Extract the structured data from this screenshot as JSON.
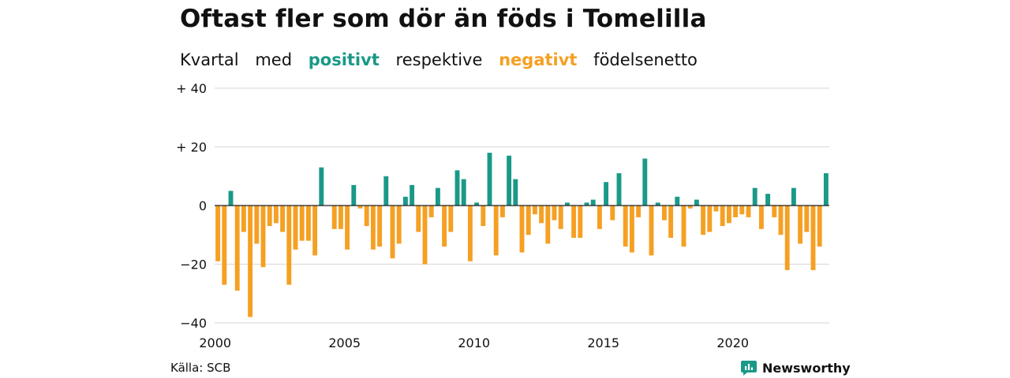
{
  "title": "Oftast fler som dör än föds i Tomelilla",
  "subtitle": {
    "w1": "Kvartal",
    "w2": "med",
    "positive_word": "positivt",
    "w3": "respektive",
    "negative_word": "negativt",
    "w4": "födelsenetto"
  },
  "colors": {
    "positive": "#1a9988",
    "negative": "#f5a023",
    "grid": "#dddddd",
    "text": "#111111"
  },
  "source": "Källa: SCB",
  "brand": {
    "name": "Newsworthy",
    "icon": "chart-bubble-icon"
  },
  "chart_data": {
    "type": "bar",
    "x_start_year": 2000,
    "x_start_quarter": 1,
    "values": [
      -19,
      -27,
      5,
      -29,
      -9,
      -38,
      -13,
      -21,
      -7,
      -6,
      -9,
      -27,
      -15,
      -12,
      -12,
      -17,
      13,
      0,
      -8,
      -8,
      -15,
      7,
      -1,
      -7,
      -15,
      -14,
      10,
      -18,
      -13,
      3,
      7,
      -9,
      -20,
      -4,
      6,
      -14,
      -9,
      12,
      9,
      -19,
      1,
      -7,
      18,
      -17,
      -4,
      17,
      9,
      -16,
      -10,
      -3,
      -6,
      -13,
      -5,
      -8,
      1,
      -11,
      -11,
      1,
      2,
      -8,
      8,
      -5,
      11,
      -14,
      -16,
      -4,
      16,
      -17,
      1,
      -5,
      -11,
      3,
      -14,
      -1,
      2,
      -10,
      -9,
      -2,
      -7,
      -6,
      -4,
      -3,
      -4,
      6,
      -8,
      4,
      -4,
      -10,
      -22,
      6,
      -13,
      -9,
      -22,
      -14,
      11
    ],
    "ylim": [
      -40,
      40
    ],
    "y_ticks": [
      40,
      20,
      0,
      -20,
      -40
    ],
    "y_tick_labels": [
      "+ 40",
      "+ 20",
      "0",
      "−20",
      "−40"
    ],
    "x_tick_labels": [
      "2000",
      "2005",
      "2010",
      "2015",
      "2020"
    ],
    "xlabel": "",
    "ylabel": "",
    "grid": true
  }
}
